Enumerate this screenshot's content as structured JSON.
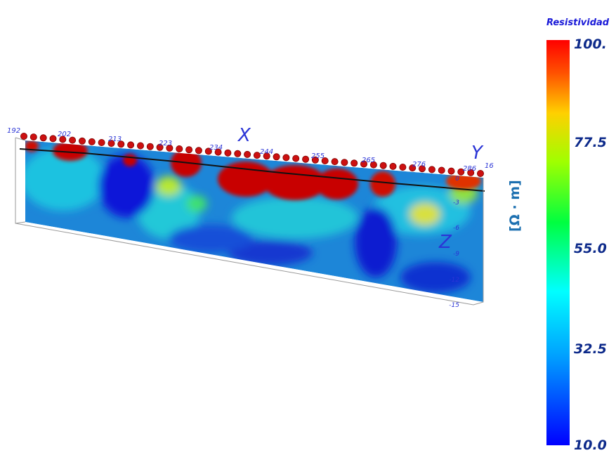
{
  "colorbar": {
    "title": "Resistividad",
    "unit": "[Ω · m]",
    "ticks": [
      "100.",
      "77.5",
      "55.0",
      "32.5",
      "10.0"
    ],
    "min": 10.0,
    "max": 100.0
  },
  "axes": {
    "x_label": "X",
    "y_label": "Y",
    "z_label": "Z",
    "x_ticks": [
      "192",
      "202",
      "213",
      "223",
      "234",
      "244",
      "255",
      "265",
      "276",
      "286"
    ],
    "y_tick": "16",
    "z_ticks": [
      "0",
      "-3",
      "-6",
      "-9",
      "-12",
      "-15"
    ]
  },
  "colors": {
    "low": "#0000ff",
    "mid_low": "#00ffff",
    "mid": "#00ff00",
    "mid_high": "#ffff00",
    "high": "#ff0000",
    "electrode": "#cc1010"
  }
}
